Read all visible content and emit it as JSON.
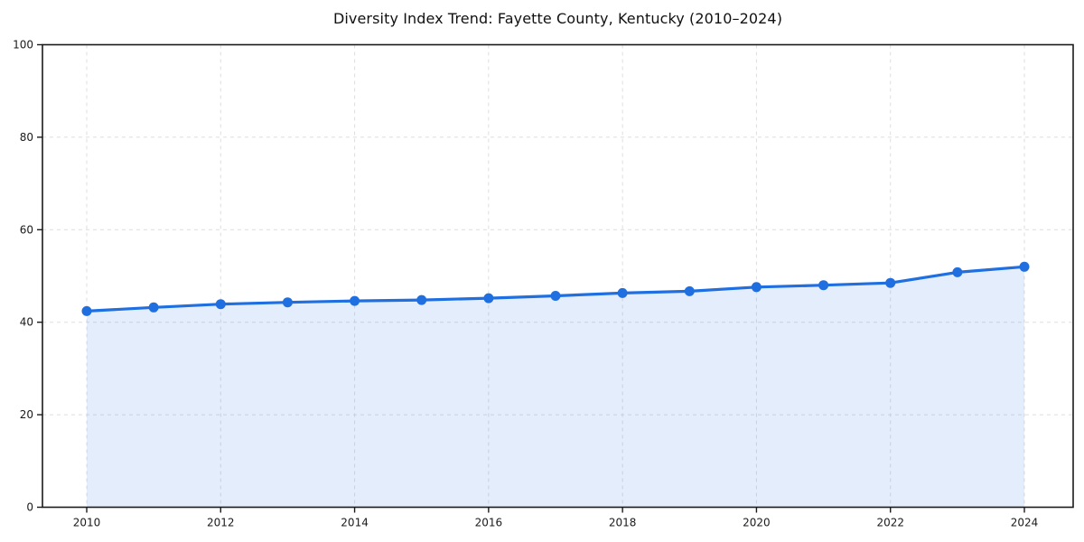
{
  "chart_data": {
    "type": "line",
    "title": "Diversity Index Trend: Fayette County, Kentucky (2010–2024)",
    "x": [
      2010,
      2011,
      2012,
      2013,
      2014,
      2015,
      2016,
      2017,
      2018,
      2019,
      2020,
      2021,
      2022,
      2023,
      2024
    ],
    "series": [
      {
        "name": "Diversity Index",
        "values": [
          42.4,
          43.2,
          43.9,
          44.3,
          44.6,
          44.8,
          45.2,
          45.7,
          46.3,
          46.7,
          47.6,
          48.0,
          48.5,
          50.8,
          52.0
        ]
      }
    ],
    "xlabel": "",
    "ylabel": "",
    "ylim": [
      0,
      100
    ],
    "y_ticks": [
      0,
      20,
      40,
      60,
      80,
      100
    ],
    "x_ticks": [
      2010,
      2012,
      2014,
      2016,
      2018,
      2020,
      2022,
      2024
    ],
    "grid": "dashed",
    "legend": "none",
    "markers": true,
    "area_fill": true,
    "line_color": "#1f6fe0",
    "fill_color": "#1f6fe0",
    "fill_opacity": 0.12,
    "grid_color": "#dedede",
    "axis_color": "#1a1a1a",
    "text_color": "#1a1a1a",
    "background_color": "#ffffff"
  }
}
